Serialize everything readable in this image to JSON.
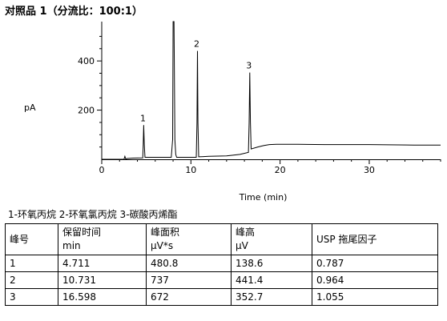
{
  "page": {
    "title": "对照品 1（分流比：100:1）"
  },
  "chart_data": {
    "type": "line",
    "title": "",
    "xlabel": "Time (min)",
    "ylabel": "pA",
    "xlim": [
      0,
      38
    ],
    "ylim": [
      0,
      560
    ],
    "x_ticks": [
      0,
      10,
      20,
      30
    ],
    "y_ticks": [
      200,
      400
    ],
    "grid": false,
    "series": [
      {
        "x": [
          0,
          2.5,
          2.6,
          2.7,
          2.8,
          3.5,
          4.6,
          4.65,
          4.711,
          4.77,
          4.85,
          5.5,
          7.8,
          7.95,
          8.0,
          8.1,
          8.2,
          8.3,
          8.4,
          8.55,
          9.5,
          10.6,
          10.68,
          10.731,
          10.79,
          10.87,
          12,
          14,
          15.5,
          16.45,
          16.53,
          16.598,
          16.67,
          16.75,
          17.5,
          18.2,
          18.8,
          19.6,
          22,
          25,
          30,
          35,
          38
        ],
        "y": [
          0,
          0,
          12,
          0,
          3,
          5,
          6,
          60,
          139,
          60,
          8,
          8,
          8,
          80,
          560,
          560,
          80,
          20,
          8,
          8,
          8,
          8,
          150,
          441,
          150,
          10,
          12,
          14,
          20,
          28,
          150,
          353,
          150,
          42,
          50,
          56,
          60,
          61,
          61,
          60,
          60,
          58,
          58
        ]
      }
    ],
    "annotations": [
      {
        "label": "1",
        "x": 4.711,
        "y": 139
      },
      {
        "label": "2",
        "x": 10.731,
        "y": 441
      },
      {
        "label": "3",
        "x": 16.598,
        "y": 353
      }
    ]
  },
  "legend_text": "1-环氧丙烷 2-环氧氯丙烷   3-碳酸丙烯酯",
  "table": {
    "headers": [
      {
        "line1": "峰号",
        "line2": ""
      },
      {
        "line1": "保留时间",
        "line2": "min"
      },
      {
        "line1": "峰面积",
        "line2": "μV*s"
      },
      {
        "line1": "峰高",
        "line2": "μV"
      },
      {
        "line1": "USP 拖尾因子",
        "line2": ""
      }
    ],
    "rows": [
      [
        "1",
        "4.711",
        "480.8",
        "138.6",
        "0.787"
      ],
      [
        "2",
        "10.731",
        "737",
        "441.4",
        "0.964"
      ],
      [
        "3",
        "16.598",
        "672",
        "352.7",
        "1.055"
      ]
    ]
  }
}
